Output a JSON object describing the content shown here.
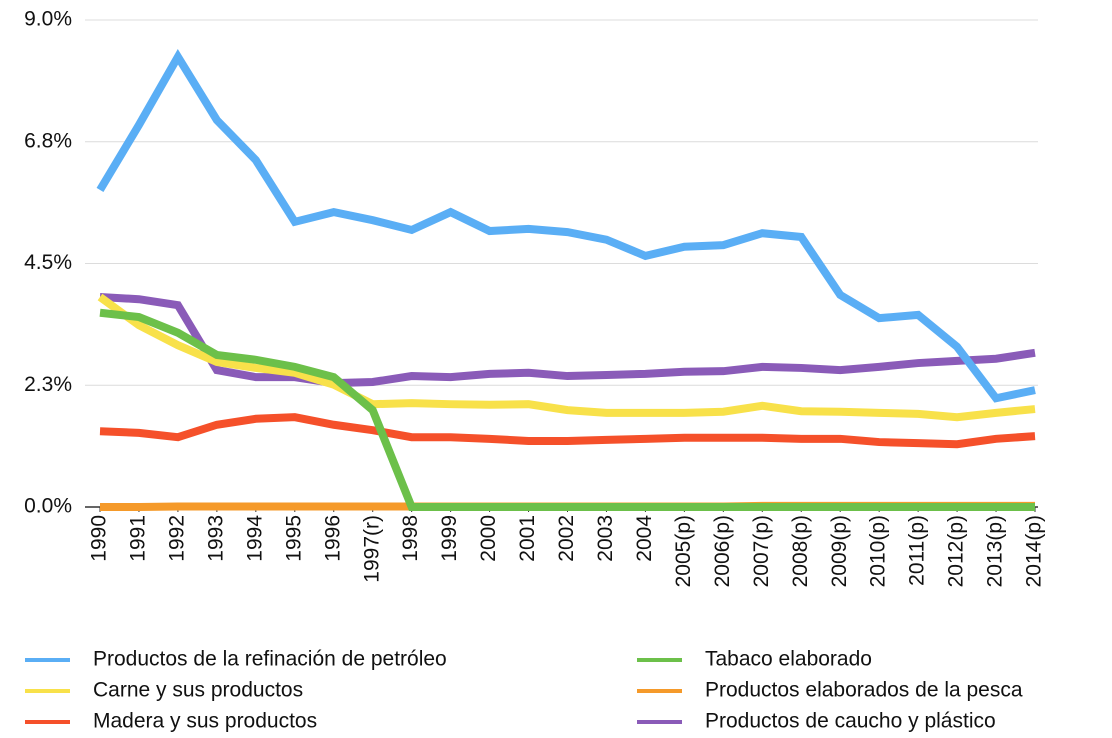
{
  "chart_data": {
    "type": "line",
    "categories": [
      "1990",
      "1991",
      "1992",
      "1993",
      "1994",
      "1995",
      "1996",
      "1997(r)",
      "1998",
      "1999",
      "2000",
      "2001",
      "2002",
      "2003",
      "2004",
      "2005(p)",
      "2006(p)",
      "2007(p)",
      "2008(p)",
      "2009(p)",
      "2010(p)",
      "2011(p)",
      "2012(p)",
      "2013(p)",
      "2014(p)"
    ],
    "series": [
      {
        "name": "Productos de la refinación de petróleo",
        "color": "#5aaef5",
        "values": [
          5.86,
          7.06,
          8.32,
          7.15,
          6.41,
          5.27,
          5.45,
          5.3,
          5.12,
          5.45,
          5.1,
          5.14,
          5.08,
          4.94,
          4.64,
          4.81,
          4.84,
          5.06,
          4.99,
          3.92,
          3.49,
          3.55,
          2.96,
          2.01,
          2.16
        ]
      },
      {
        "name": "Carne y sus productos",
        "color": "#f8e14a",
        "values": [
          3.88,
          3.36,
          2.99,
          2.68,
          2.57,
          2.48,
          2.26,
          1.9,
          1.92,
          1.9,
          1.89,
          1.9,
          1.79,
          1.74,
          1.74,
          1.74,
          1.76,
          1.87,
          1.77,
          1.76,
          1.74,
          1.72,
          1.66,
          1.74,
          1.81
        ]
      },
      {
        "name": "Madera y sus productos",
        "color": "#f5502a",
        "values": [
          1.4,
          1.37,
          1.29,
          1.52,
          1.63,
          1.66,
          1.52,
          1.42,
          1.29,
          1.29,
          1.26,
          1.22,
          1.22,
          1.24,
          1.26,
          1.28,
          1.28,
          1.28,
          1.26,
          1.26,
          1.2,
          1.18,
          1.16,
          1.26,
          1.31
        ]
      },
      {
        "name": "Tabaco elaborado",
        "color": "#6cc04a",
        "values": [
          3.59,
          3.51,
          3.22,
          2.81,
          2.72,
          2.59,
          2.4,
          1.79,
          0,
          0,
          0,
          0,
          0,
          0,
          0,
          0,
          0,
          0,
          0,
          0,
          0,
          0,
          0,
          0,
          0
        ]
      },
      {
        "name": "Productos elaborados de la pesca",
        "color": "#f59a2a",
        "values": [
          0,
          0,
          0.01,
          0.01,
          0.01,
          0.01,
          0.01,
          0.01,
          0.01,
          0.01,
          0.01,
          0.01,
          0.01,
          0.01,
          0.01,
          0.01,
          0.01,
          0.02,
          0.02,
          0.02,
          0.02,
          0.02,
          0.02,
          0.02,
          0.02
        ]
      },
      {
        "name": "Productos de caucho y plástico",
        "color": "#8a5bb8",
        "values": [
          3.88,
          3.84,
          3.73,
          2.53,
          2.4,
          2.4,
          2.29,
          2.31,
          2.42,
          2.4,
          2.46,
          2.48,
          2.42,
          2.44,
          2.46,
          2.5,
          2.51,
          2.59,
          2.57,
          2.53,
          2.59,
          2.66,
          2.7,
          2.74,
          2.85
        ]
      }
    ],
    "ylim": [
      0,
      9
    ],
    "yticks": [
      {
        "value": 0,
        "label": "0.0%"
      },
      {
        "value": 2.25,
        "label": "2.3%"
      },
      {
        "value": 4.5,
        "label": "4.5%"
      },
      {
        "value": 6.75,
        "label": "6.8%"
      },
      {
        "value": 9,
        "label": "9.0%"
      }
    ],
    "grid": true
  }
}
